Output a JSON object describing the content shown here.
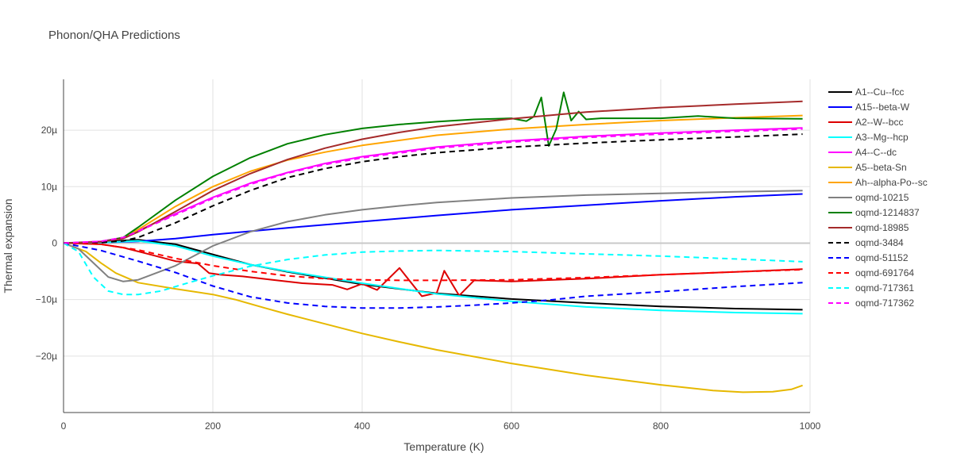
{
  "chart_data": {
    "type": "line",
    "title": "Phonon/QHA Predictions",
    "xlabel": "Temperature (K)",
    "ylabel": "Thermal expansion",
    "xlim": [
      0,
      1000
    ],
    "ylim": [
      -30,
      29
    ],
    "xticks": [
      0,
      200,
      400,
      600,
      800,
      1000
    ],
    "xtick_labels": [
      "0",
      "200",
      "400",
      "600",
      "800",
      "1000"
    ],
    "yticks": [
      -20,
      -10,
      0,
      10,
      20
    ],
    "ytick_labels": [
      "−20µ",
      "−10µ",
      "0",
      "10µ",
      "20µ"
    ],
    "grid": true,
    "legend_position": "right",
    "series": [
      {
        "name": "A1--Cu--fcc",
        "color": "#000000",
        "dash": "solid",
        "points": [
          [
            0,
            0
          ],
          [
            50,
            0.2
          ],
          [
            100,
            0.6
          ],
          [
            150,
            -0.2
          ],
          [
            200,
            -2
          ],
          [
            250,
            -3.8
          ],
          [
            300,
            -5.1
          ],
          [
            400,
            -7.3
          ],
          [
            500,
            -8.9
          ],
          [
            600,
            -9.9
          ],
          [
            700,
            -10.6
          ],
          [
            800,
            -11.2
          ],
          [
            900,
            -11.6
          ],
          [
            990,
            -11.8
          ]
        ]
      },
      {
        "name": "A15--beta-W",
        "color": "#0000ff",
        "dash": "solid",
        "points": [
          [
            0,
            0
          ],
          [
            50,
            0.1
          ],
          [
            100,
            0.3
          ],
          [
            150,
            0.8
          ],
          [
            200,
            1.5
          ],
          [
            300,
            2.7
          ],
          [
            400,
            3.8
          ],
          [
            500,
            4.9
          ],
          [
            600,
            5.9
          ],
          [
            700,
            6.7
          ],
          [
            800,
            7.5
          ],
          [
            900,
            8.2
          ],
          [
            990,
            8.7
          ]
        ]
      },
      {
        "name": "A2--W--bcc",
        "color": "#dd0000",
        "dash": "solid",
        "points": [
          [
            0,
            0
          ],
          [
            50,
            -0.2
          ],
          [
            80,
            -0.8
          ],
          [
            110,
            -1.8
          ],
          [
            150,
            -3.2
          ],
          [
            180,
            -3.6
          ],
          [
            195,
            -5.3
          ],
          [
            210,
            -5.6
          ],
          [
            240,
            -5.9
          ],
          [
            280,
            -6.5
          ],
          [
            320,
            -7.1
          ],
          [
            360,
            -7.4
          ],
          [
            380,
            -8.2
          ],
          [
            400,
            -7.2
          ],
          [
            420,
            -8.3
          ],
          [
            450,
            -4.4
          ],
          [
            480,
            -9.4
          ],
          [
            500,
            -8.8
          ],
          [
            510,
            -4.9
          ],
          [
            530,
            -9.3
          ],
          [
            550,
            -6.6
          ],
          [
            600,
            -6.8
          ],
          [
            700,
            -6.3
          ],
          [
            800,
            -5.6
          ],
          [
            900,
            -5.1
          ],
          [
            990,
            -4.6
          ]
        ]
      },
      {
        "name": "A3--Mg--hcp",
        "color": "#00ffff",
        "dash": "solid",
        "points": [
          [
            0,
            0
          ],
          [
            50,
            0.1
          ],
          [
            100,
            0.4
          ],
          [
            150,
            -0.5
          ],
          [
            200,
            -2.3
          ],
          [
            250,
            -3.8
          ],
          [
            300,
            -5
          ],
          [
            400,
            -7.1
          ],
          [
            500,
            -9
          ],
          [
            600,
            -10.3
          ],
          [
            700,
            -11.3
          ],
          [
            800,
            -11.9
          ],
          [
            900,
            -12.3
          ],
          [
            990,
            -12.5
          ]
        ]
      },
      {
        "name": "A4--C--dc",
        "color": "#ff00ff",
        "dash": "solid",
        "points": [
          [
            0,
            0
          ],
          [
            50,
            0.3
          ],
          [
            80,
            1
          ],
          [
            100,
            2.2
          ],
          [
            150,
            5.2
          ],
          [
            200,
            8.1
          ],
          [
            250,
            10.6
          ],
          [
            300,
            12.5
          ],
          [
            350,
            14.1
          ],
          [
            400,
            15.3
          ],
          [
            500,
            17
          ],
          [
            600,
            18.1
          ],
          [
            700,
            18.9
          ],
          [
            800,
            19.5
          ],
          [
            900,
            20
          ],
          [
            990,
            20.4
          ]
        ]
      },
      {
        "name": "A5--beta-Sn",
        "color": "#e6b800",
        "dash": "solid",
        "points": [
          [
            0,
            0
          ],
          [
            30,
            -1.5
          ],
          [
            50,
            -3.5
          ],
          [
            70,
            -5.3
          ],
          [
            100,
            -7
          ],
          [
            150,
            -8.1
          ],
          [
            200,
            -9.1
          ],
          [
            230,
            -10
          ],
          [
            270,
            -11.5
          ],
          [
            300,
            -12.6
          ],
          [
            350,
            -14.3
          ],
          [
            400,
            -16
          ],
          [
            450,
            -17.5
          ],
          [
            500,
            -18.9
          ],
          [
            600,
            -21.3
          ],
          [
            700,
            -23.4
          ],
          [
            800,
            -25.1
          ],
          [
            870,
            -26.1
          ],
          [
            910,
            -26.4
          ],
          [
            950,
            -26.3
          ],
          [
            975,
            -25.9
          ],
          [
            990,
            -25.2
          ]
        ]
      },
      {
        "name": "Ah--alpha-Po--sc",
        "color": "#ffa500",
        "dash": "solid",
        "points": [
          [
            0,
            0
          ],
          [
            50,
            0.2
          ],
          [
            80,
            1
          ],
          [
            100,
            2.4
          ],
          [
            150,
            6.5
          ],
          [
            200,
            10
          ],
          [
            250,
            12.7
          ],
          [
            300,
            14.7
          ],
          [
            350,
            16.1
          ],
          [
            400,
            17.3
          ],
          [
            500,
            19.1
          ],
          [
            600,
            20.2
          ],
          [
            700,
            21
          ],
          [
            800,
            21.7
          ],
          [
            900,
            22.2
          ],
          [
            990,
            22.6
          ]
        ]
      },
      {
        "name": "oqmd-10215",
        "color": "#808080",
        "dash": "solid",
        "points": [
          [
            0,
            0
          ],
          [
            20,
            -1
          ],
          [
            40,
            -3.5
          ],
          [
            60,
            -6
          ],
          [
            80,
            -6.8
          ],
          [
            100,
            -6.5
          ],
          [
            150,
            -4
          ],
          [
            200,
            -0.5
          ],
          [
            250,
            2
          ],
          [
            300,
            3.8
          ],
          [
            350,
            5
          ],
          [
            400,
            5.9
          ],
          [
            450,
            6.6
          ],
          [
            500,
            7.2
          ],
          [
            600,
            8
          ],
          [
            700,
            8.5
          ],
          [
            800,
            8.8
          ],
          [
            900,
            9.1
          ],
          [
            990,
            9.3
          ]
        ]
      },
      {
        "name": "oqmd-1214837",
        "color": "#008000",
        "dash": "solid",
        "points": [
          [
            0,
            0
          ],
          [
            50,
            0.2
          ],
          [
            80,
            1
          ],
          [
            100,
            2.8
          ],
          [
            150,
            7.6
          ],
          [
            200,
            11.8
          ],
          [
            250,
            15.1
          ],
          [
            300,
            17.6
          ],
          [
            350,
            19.2
          ],
          [
            400,
            20.3
          ],
          [
            450,
            21
          ],
          [
            500,
            21.5
          ],
          [
            550,
            21.9
          ],
          [
            600,
            22.1
          ],
          [
            620,
            21.6
          ],
          [
            630,
            22.4
          ],
          [
            640,
            25.8
          ],
          [
            650,
            17.2
          ],
          [
            660,
            20.2
          ],
          [
            670,
            26.7
          ],
          [
            680,
            21.7
          ],
          [
            690,
            23.3
          ],
          [
            700,
            21.9
          ],
          [
            720,
            22.1
          ],
          [
            800,
            22.1
          ],
          [
            850,
            22.5
          ],
          [
            900,
            22.1
          ],
          [
            990,
            22
          ]
        ]
      },
      {
        "name": "oqmd-18985",
        "color": "#a52a2a",
        "dash": "solid",
        "points": [
          [
            0,
            0
          ],
          [
            50,
            0.2
          ],
          [
            80,
            0.8
          ],
          [
            100,
            2
          ],
          [
            150,
            5.6
          ],
          [
            200,
            9.3
          ],
          [
            250,
            12.3
          ],
          [
            300,
            14.8
          ],
          [
            350,
            16.8
          ],
          [
            400,
            18.4
          ],
          [
            450,
            19.6
          ],
          [
            500,
            20.6
          ],
          [
            600,
            22
          ],
          [
            700,
            23.2
          ],
          [
            800,
            24
          ],
          [
            900,
            24.6
          ],
          [
            990,
            25.1
          ]
        ]
      },
      {
        "name": "oqmd-3484",
        "color": "#000000",
        "dash": "dash",
        "points": [
          [
            0,
            0
          ],
          [
            50,
            0.1
          ],
          [
            80,
            0.4
          ],
          [
            100,
            1
          ],
          [
            150,
            3.6
          ],
          [
            200,
            6.6
          ],
          [
            250,
            9.3
          ],
          [
            300,
            11.6
          ],
          [
            350,
            13.2
          ],
          [
            400,
            14.4
          ],
          [
            450,
            15.3
          ],
          [
            500,
            16
          ],
          [
            600,
            17
          ],
          [
            700,
            17.7
          ],
          [
            800,
            18.3
          ],
          [
            900,
            18.8
          ],
          [
            990,
            19.3
          ]
        ]
      },
      {
        "name": "oqmd-51152",
        "color": "#0000ff",
        "dash": "dash",
        "points": [
          [
            0,
            0
          ],
          [
            50,
            -1.3
          ],
          [
            100,
            -3.2
          ],
          [
            150,
            -5.2
          ],
          [
            200,
            -7.6
          ],
          [
            250,
            -9.5
          ],
          [
            300,
            -10.6
          ],
          [
            350,
            -11.2
          ],
          [
            400,
            -11.5
          ],
          [
            450,
            -11.5
          ],
          [
            500,
            -11.3
          ],
          [
            550,
            -11
          ],
          [
            600,
            -10.6
          ],
          [
            650,
            -10.1
          ],
          [
            700,
            -9.4
          ],
          [
            800,
            -8.6
          ],
          [
            900,
            -7.7
          ],
          [
            990,
            -7
          ]
        ]
      },
      {
        "name": "oqmd-691764",
        "color": "#ff0000",
        "dash": "dash",
        "points": [
          [
            0,
            0
          ],
          [
            50,
            -0.2
          ],
          [
            100,
            -1.2
          ],
          [
            150,
            -2.7
          ],
          [
            200,
            -4
          ],
          [
            250,
            -5
          ],
          [
            300,
            -5.8
          ],
          [
            350,
            -6.3
          ],
          [
            400,
            -6.5
          ],
          [
            450,
            -6.6
          ],
          [
            500,
            -6.6
          ],
          [
            600,
            -6.5
          ],
          [
            700,
            -6.1
          ],
          [
            800,
            -5.6
          ],
          [
            900,
            -5.1
          ],
          [
            990,
            -4.7
          ]
        ]
      },
      {
        "name": "oqmd-717361",
        "color": "#00ffff",
        "dash": "dash",
        "points": [
          [
            0,
            0
          ],
          [
            20,
            -1.5
          ],
          [
            40,
            -6
          ],
          [
            60,
            -8.5
          ],
          [
            80,
            -9.1
          ],
          [
            100,
            -9.1
          ],
          [
            130,
            -8.5
          ],
          [
            160,
            -7.3
          ],
          [
            200,
            -5.8
          ],
          [
            250,
            -4.1
          ],
          [
            300,
            -2.9
          ],
          [
            350,
            -2.1
          ],
          [
            400,
            -1.6
          ],
          [
            450,
            -1.4
          ],
          [
            500,
            -1.3
          ],
          [
            600,
            -1.5
          ],
          [
            700,
            -1.9
          ],
          [
            800,
            -2.3
          ],
          [
            900,
            -2.8
          ],
          [
            990,
            -3.3
          ]
        ]
      },
      {
        "name": "oqmd-717362",
        "color": "#ff00ff",
        "dash": "dash",
        "points": [
          [
            0,
            0
          ],
          [
            50,
            0.3
          ],
          [
            80,
            1
          ],
          [
            100,
            2.1
          ],
          [
            150,
            5
          ],
          [
            200,
            7.9
          ],
          [
            250,
            10.4
          ],
          [
            300,
            12.4
          ],
          [
            350,
            13.9
          ],
          [
            400,
            15.1
          ],
          [
            500,
            16.8
          ],
          [
            600,
            17.9
          ],
          [
            700,
            18.7
          ],
          [
            800,
            19.3
          ],
          [
            900,
            19.8
          ],
          [
            990,
            20.2
          ]
        ]
      }
    ]
  }
}
